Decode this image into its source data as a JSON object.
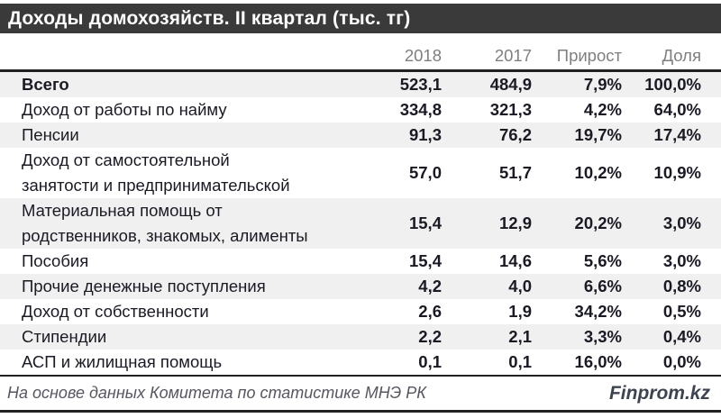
{
  "title": "Доходы домохозяйств. II квартал (тыс. тг)",
  "table": {
    "columns": [
      "2018",
      "2017",
      "Прирост",
      "Доля"
    ],
    "rows": [
      {
        "label": "Всего",
        "v2018": "523,1",
        "v2017": "484,9",
        "growth": "7,9%",
        "share": "100,0%"
      },
      {
        "label": "Доход от работы по найму",
        "v2018": "334,8",
        "v2017": "321,3",
        "growth": "4,2%",
        "share": "64,0%"
      },
      {
        "label": "Пенсии",
        "v2018": "91,3",
        "v2017": "76,2",
        "growth": "19,7%",
        "share": "17,4%"
      },
      {
        "label": "Доход от самостоятельной\nзанятости и предпринимательской",
        "v2018": "57,0",
        "v2017": "51,7",
        "growth": "10,2%",
        "share": "10,9%"
      },
      {
        "label": "Материальная помощь от\nродственников, знакомых, алименты",
        "v2018": "15,4",
        "v2017": "12,9",
        "growth": "20,2%",
        "share": "3,0%"
      },
      {
        "label": "Пособия",
        "v2018": "15,4",
        "v2017": "14,6",
        "growth": "5,6%",
        "share": "3,0%"
      },
      {
        "label": "Прочие денежные поступления",
        "v2018": "4,2",
        "v2017": "4,0",
        "growth": "6,6%",
        "share": "0,8%"
      },
      {
        "label": "Доход от собственности",
        "v2018": "2,6",
        "v2017": "1,9",
        "growth": "34,2%",
        "share": "0,5%"
      },
      {
        "label": "Стипендии",
        "v2018": "2,2",
        "v2017": "2,1",
        "growth": "3,3%",
        "share": "0,4%"
      },
      {
        "label": "АСП и жилищная помощь",
        "v2018": "0,1",
        "v2017": "0,1",
        "growth": "16,0%",
        "share": "0,0%"
      }
    ]
  },
  "footer": {
    "source": "На основе данных Комитета по статистике МНЭ РК",
    "brand": "Finprom.kz"
  },
  "colors": {
    "title_bar_bg": "#3a3a3a",
    "title_text": "#ffffff",
    "stripe": "#f0f0f0",
    "body_text": "#1a1a24",
    "header_text": "#7f7f7f",
    "rule": "#212121",
    "brand_text": "#3d4450"
  },
  "chart_data": {
    "type": "table",
    "title": "Доходы домохозяйств. II квартал (тыс. тг)",
    "columns": [
      "2018",
      "2017",
      "Прирост",
      "Доля"
    ],
    "rows": [
      {
        "category": "Всего",
        "y2018": 523.1,
        "y2017": 484.9,
        "growth_pct": 7.9,
        "share_pct": 100.0
      },
      {
        "category": "Доход от работы по найму",
        "y2018": 334.8,
        "y2017": 321.3,
        "growth_pct": 4.2,
        "share_pct": 64.0
      },
      {
        "category": "Пенсии",
        "y2018": 91.3,
        "y2017": 76.2,
        "growth_pct": 19.7,
        "share_pct": 17.4
      },
      {
        "category": "Доход от самостоятельной занятости и предпринимательской",
        "y2018": 57.0,
        "y2017": 51.7,
        "growth_pct": 10.2,
        "share_pct": 10.9
      },
      {
        "category": "Материальная помощь от родственников, знакомых, алименты",
        "y2018": 15.4,
        "y2017": 12.9,
        "growth_pct": 20.2,
        "share_pct": 3.0
      },
      {
        "category": "Пособия",
        "y2018": 15.4,
        "y2017": 14.6,
        "growth_pct": 5.6,
        "share_pct": 3.0
      },
      {
        "category": "Прочие денежные поступления",
        "y2018": 4.2,
        "y2017": 4.0,
        "growth_pct": 6.6,
        "share_pct": 0.8
      },
      {
        "category": "Доход от собственности",
        "y2018": 2.6,
        "y2017": 1.9,
        "growth_pct": 34.2,
        "share_pct": 0.5
      },
      {
        "category": "Стипендии",
        "y2018": 2.2,
        "y2017": 2.1,
        "growth_pct": 3.3,
        "share_pct": 0.4
      },
      {
        "category": "АСП и жилищная помощь",
        "y2018": 0.1,
        "y2017": 0.1,
        "growth_pct": 16.0,
        "share_pct": 0.0
      }
    ],
    "units": "тыс. тг",
    "source": "Комитет по статистике МНЭ РК"
  }
}
